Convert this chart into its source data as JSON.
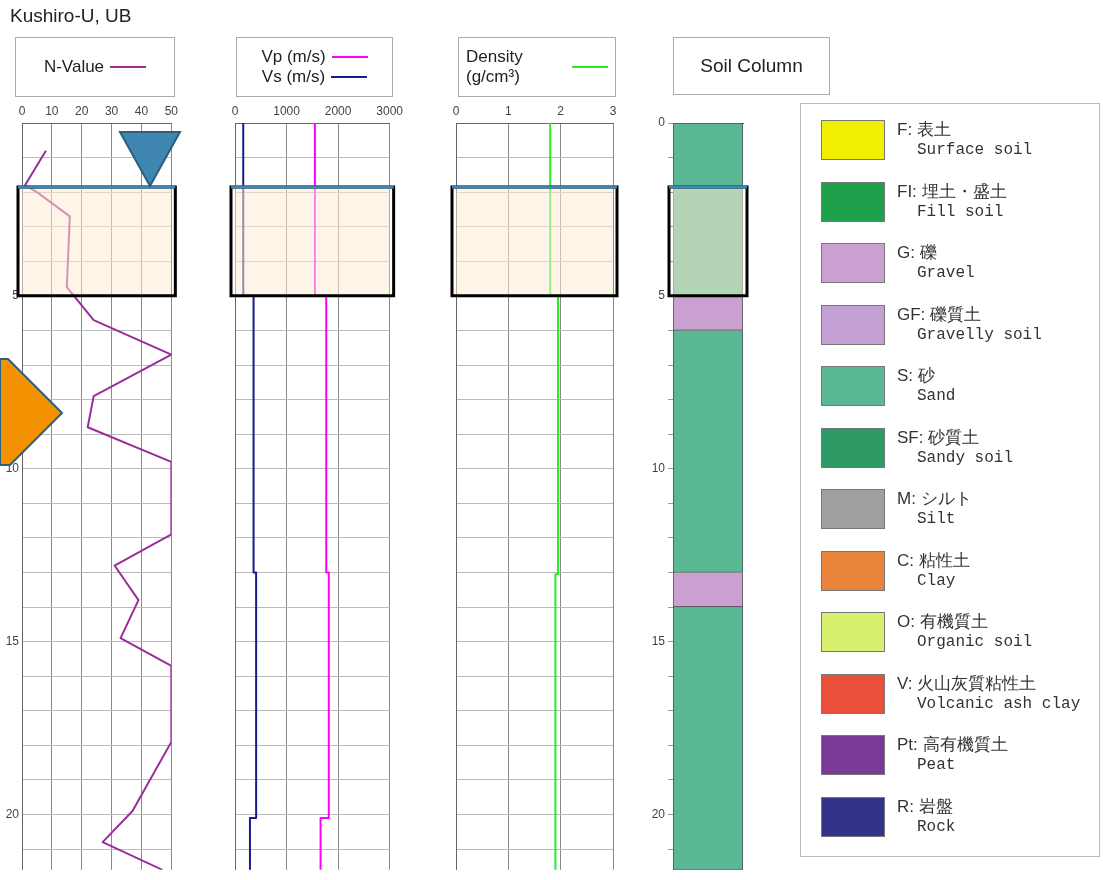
{
  "chart_data": [
    {
      "type": "line",
      "title": "Kushiro-U, UB",
      "orientation": "horizontal",
      "xlim": [
        0,
        50
      ],
      "xticks": [
        0,
        10,
        20,
        30,
        40,
        50
      ],
      "ylim": [
        21.6,
        0
      ],
      "yticks": [
        {
          "value": 0,
          "label": null
        },
        {
          "value": 1,
          "label": null
        },
        {
          "value": 2,
          "label": null
        },
        {
          "value": 3,
          "label": null
        },
        {
          "value": 4,
          "label": null
        },
        5,
        {
          "value": 6,
          "label": null
        },
        {
          "value": 7,
          "label": null
        },
        {
          "value": 8,
          "label": null
        },
        {
          "value": 9,
          "label": null
        },
        10,
        {
          "value": 11,
          "label": null
        },
        {
          "value": 12,
          "label": null
        },
        {
          "value": 13,
          "label": null
        },
        {
          "value": 14,
          "label": null
        },
        15,
        {
          "value": 16,
          "label": null
        },
        {
          "value": 17,
          "label": null
        },
        {
          "value": 18,
          "label": null
        },
        {
          "value": 19,
          "label": null
        },
        20,
        {
          "value": 21,
          "label": null
        }
      ],
      "grid": true,
      "legend": "top",
      "bands": [
        {
          "axis": "y",
          "from": 1.85,
          "to": 5,
          "color": "#fdebd3"
        }
      ],
      "ref_lines": [
        {
          "axis": "y",
          "value": 1.85,
          "color": "#3a87b5"
        }
      ],
      "series": [
        {
          "name": "N-Value",
          "color": "#992d99",
          "x": [
            0.8,
            1.8,
            2.0,
            2.7,
            4.75,
            5.7,
            6.7,
            7.9,
            8.8,
            9.8,
            11.9,
            12.8,
            13.8,
            14.9,
            15.7,
            17.9,
            19.9,
            20.8,
            21.6
          ],
          "values": [
            8,
            1,
            5,
            16,
            15,
            24,
            50,
            24,
            22,
            50,
            50,
            31,
            39,
            33,
            50,
            50,
            37,
            27,
            47
          ]
        }
      ]
    },
    {
      "type": "step",
      "orientation": "horizontal",
      "xlim": [
        0,
        3000
      ],
      "xticks": [
        0,
        1000,
        2000,
        3000
      ],
      "ylim": [
        21.6,
        0
      ],
      "yticks": [
        {
          "value": 0,
          "label": null
        },
        {
          "value": 1,
          "label": null
        },
        {
          "value": 2,
          "label": null
        },
        {
          "value": 3,
          "label": null
        },
        {
          "value": 4,
          "label": null
        },
        {
          "value": 5,
          "label": null
        },
        {
          "value": 6,
          "label": null
        },
        {
          "value": 7,
          "label": null
        },
        {
          "value": 8,
          "label": null
        },
        {
          "value": 9,
          "label": null
        },
        {
          "value": 10,
          "label": null
        },
        {
          "value": 11,
          "label": null
        },
        {
          "value": 12,
          "label": null
        },
        {
          "value": 13,
          "label": null
        },
        {
          "value": 14,
          "label": null
        },
        {
          "value": 15,
          "label": null
        },
        {
          "value": 16,
          "label": null
        },
        {
          "value": 17,
          "label": null
        },
        {
          "value": 18,
          "label": null
        },
        {
          "value": 19,
          "label": null
        },
        {
          "value": 20,
          "label": null
        },
        {
          "value": 21,
          "label": null
        }
      ],
      "tick_labels": "x",
      "grid": true,
      "legend": "top",
      "bands": [
        {
          "axis": "y",
          "from": 1.85,
          "to": 5,
          "color": "#fdebd3"
        }
      ],
      "ref_lines": [
        {
          "axis": "y",
          "value": 1.85,
          "color": "#3a87b5"
        }
      ],
      "series": [
        {
          "name": "Vp (m/s)",
          "color": "#ff00ff",
          "x": [
            0,
            5,
            13,
            20.1,
            21.6
          ],
          "values": [
            1550,
            1770,
            1820,
            1660,
            1660
          ]
        },
        {
          "name": "Vs (m/s)",
          "color": "#1a1a8c",
          "x": [
            0,
            5,
            13,
            20.1,
            21.6
          ],
          "values": [
            160,
            360,
            410,
            290,
            290
          ]
        }
      ]
    },
    {
      "type": "step",
      "orientation": "horizontal",
      "xlim": [
        0,
        3
      ],
      "xticks": [
        0,
        1,
        2,
        3
      ],
      "ylim": [
        21.6,
        0
      ],
      "yticks": [
        {
          "value": 0,
          "label": null
        },
        {
          "value": 1,
          "label": null
        },
        {
          "value": 2,
          "label": null
        },
        {
          "value": 3,
          "label": null
        },
        {
          "value": 4,
          "label": null
        },
        {
          "value": 5,
          "label": null
        },
        {
          "value": 6,
          "label": null
        },
        {
          "value": 7,
          "label": null
        },
        {
          "value": 8,
          "label": null
        },
        {
          "value": 9,
          "label": null
        },
        {
          "value": 10,
          "label": null
        },
        {
          "value": 11,
          "label": null
        },
        {
          "value": 12,
          "label": null
        },
        {
          "value": 13,
          "label": null
        },
        {
          "value": 14,
          "label": null
        },
        {
          "value": 15,
          "label": null
        },
        {
          "value": 16,
          "label": null
        },
        {
          "value": 17,
          "label": null
        },
        {
          "value": 18,
          "label": null
        },
        {
          "value": 19,
          "label": null
        },
        {
          "value": 20,
          "label": null
        },
        {
          "value": 21,
          "label": null
        }
      ],
      "tick_labels": "x",
      "grid": true,
      "legend": "top",
      "bands": [
        {
          "axis": "y",
          "from": 1.85,
          "to": 5,
          "color": "#fdebd3"
        }
      ],
      "ref_lines": [
        {
          "axis": "y",
          "value": 1.85,
          "color": "#3a87b5"
        }
      ],
      "series": [
        {
          "name": "Density (g/cm³)",
          "color": "#22ee22",
          "x": [
            0,
            5,
            13.05,
            21.6
          ],
          "values": [
            1.8,
            1.95,
            1.9,
            1.9
          ]
        }
      ]
    },
    {
      "type": "bar",
      "title": "Soil Column",
      "stacked": true,
      "categories": [
        null
      ],
      "ylim": [
        21.6,
        0
      ],
      "yticks": [
        0,
        {
          "value": 1,
          "label": null
        },
        {
          "value": 2,
          "label": null
        },
        {
          "value": 3,
          "label": null
        },
        {
          "value": 4,
          "label": null
        },
        5,
        {
          "value": 6,
          "label": null
        },
        {
          "value": 7,
          "label": null
        },
        {
          "value": 8,
          "label": null
        },
        {
          "value": 9,
          "label": null
        },
        10,
        {
          "value": 11,
          "label": null
        },
        {
          "value": 12,
          "label": null
        },
        {
          "value": 13,
          "label": null
        },
        {
          "value": 14,
          "label": null
        },
        15,
        {
          "value": 16,
          "label": null
        },
        {
          "value": 17,
          "label": null
        },
        {
          "value": 18,
          "label": null
        },
        {
          "value": 19,
          "label": null
        },
        20,
        {
          "value": 21,
          "label": null
        }
      ],
      "tick_labels": "y",
      "legend": "right",
      "bands": [
        {
          "axis": "y",
          "from": 1.85,
          "to": 5,
          "color": "#fdebd3"
        }
      ],
      "ref_lines": [
        {
          "axis": "y",
          "value": 1.85,
          "color": "#3a87b5"
        }
      ],
      "series": [
        {
          "color": "#5bb894",
          "values": [
            5
          ]
        },
        {
          "color": "#c9a0d0",
          "values": [
            1
          ]
        },
        {
          "color": "#5bb894",
          "values": [
            7
          ]
        },
        {
          "color": "#c9a0d0",
          "values": [
            1
          ]
        },
        {
          "color": "#5bb894",
          "values": [
            7.6
          ]
        },
        {
          "name": "F: 表土\nSurface soil",
          "color": "#f0f000",
          "values": [
            null
          ]
        },
        {
          "name": "FI: 埋土・盛土\nFill soil",
          "color": "#1fa04a",
          "values": [
            null
          ]
        },
        {
          "name": "G: 礫\nGravel",
          "color": "#c9a0d0",
          "values": [
            null
          ]
        },
        {
          "name": "GF: 礫質土\nGravelly soil",
          "color": "#c4a0d4",
          "values": [
            null
          ]
        },
        {
          "name": "S: 砂\nSand",
          "color": "#5bb894",
          "values": [
            null
          ]
        },
        {
          "name": "SF: 砂質土\nSandy soil",
          "color": "#2e9a66",
          "values": [
            null
          ]
        },
        {
          "name": "M: シルト\nSilt",
          "color": "#a0a0a0",
          "values": [
            null
          ]
        },
        {
          "name": "C: 粘性土\nClay",
          "color": "#e8843a",
          "values": [
            null
          ]
        },
        {
          "name": "O: 有機質土\nOrganic soil",
          "color": "#d8f070",
          "values": [
            null
          ]
        },
        {
          "name": "V: 火山灰質粘性土\nVolcanic ash clay",
          "color": "#e8503a",
          "values": [
            null
          ]
        },
        {
          "name": "Pt: 高有機質土\nPeat",
          "color": "#7a3a98",
          "values": [
            null
          ]
        },
        {
          "name": "R: 岩盤\nRock",
          "color": "#33338a",
          "values": [
            null
          ]
        }
      ]
    }
  ]
}
